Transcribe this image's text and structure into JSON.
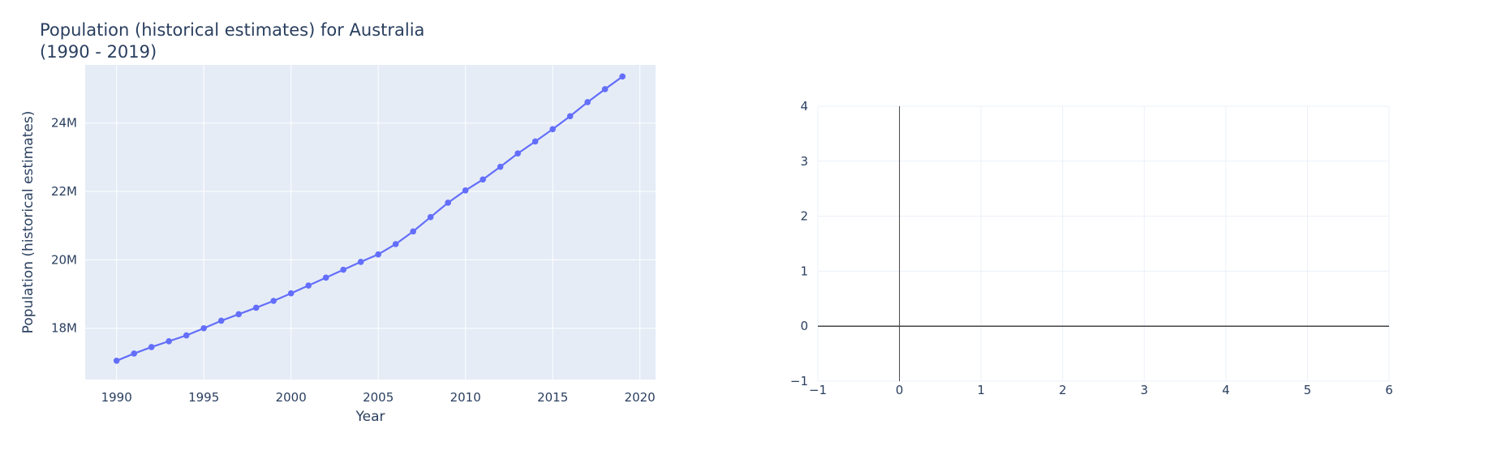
{
  "chart_data": [
    {
      "type": "line",
      "title": [
        "Population (historical estimates) for Australia",
        "(1990 - 2019)"
      ],
      "xlabel": "Year",
      "ylabel": "Population (historical estimates)",
      "xlim": [
        1988.2,
        2020.9
      ],
      "ylim": [
        16500000,
        25700000
      ],
      "xticks": [
        1990,
        1995,
        2000,
        2005,
        2010,
        2015,
        2020
      ],
      "yticks": [
        18000000,
        20000000,
        22000000,
        24000000
      ],
      "ytick_labels": [
        "18M",
        "20M",
        "22M",
        "24M"
      ],
      "plot_background": "#e5ecf6",
      "grid": true,
      "line_color": "#636efa",
      "markers": true,
      "x": [
        1990,
        1991,
        1992,
        1993,
        1994,
        1995,
        1996,
        1997,
        1998,
        1999,
        2000,
        2001,
        2002,
        2003,
        2004,
        2005,
        2006,
        2007,
        2008,
        2009,
        2010,
        2011,
        2012,
        2013,
        2014,
        2015,
        2016,
        2017,
        2018,
        2019
      ],
      "y": [
        17050000,
        17260000,
        17450000,
        17620000,
        17790000,
        18000000,
        18220000,
        18410000,
        18600000,
        18800000,
        19020000,
        19250000,
        19480000,
        19710000,
        19940000,
        20160000,
        20460000,
        20830000,
        21250000,
        21670000,
        22030000,
        22350000,
        22720000,
        23110000,
        23460000,
        23820000,
        24200000,
        24610000,
        24990000,
        25360000
      ]
    },
    {
      "type": "scatter",
      "title": "",
      "xlabel": "",
      "ylabel": "",
      "xlim": [
        -1,
        6
      ],
      "ylim": [
        -1,
        4
      ],
      "xticks": [
        -1,
        0,
        1,
        2,
        3,
        4,
        5,
        6
      ],
      "yticks": [
        -1,
        0,
        1,
        2,
        3,
        4
      ],
      "plot_background": "#ffffff",
      "grid": true,
      "zero_lines": true,
      "x": [],
      "y": []
    }
  ]
}
